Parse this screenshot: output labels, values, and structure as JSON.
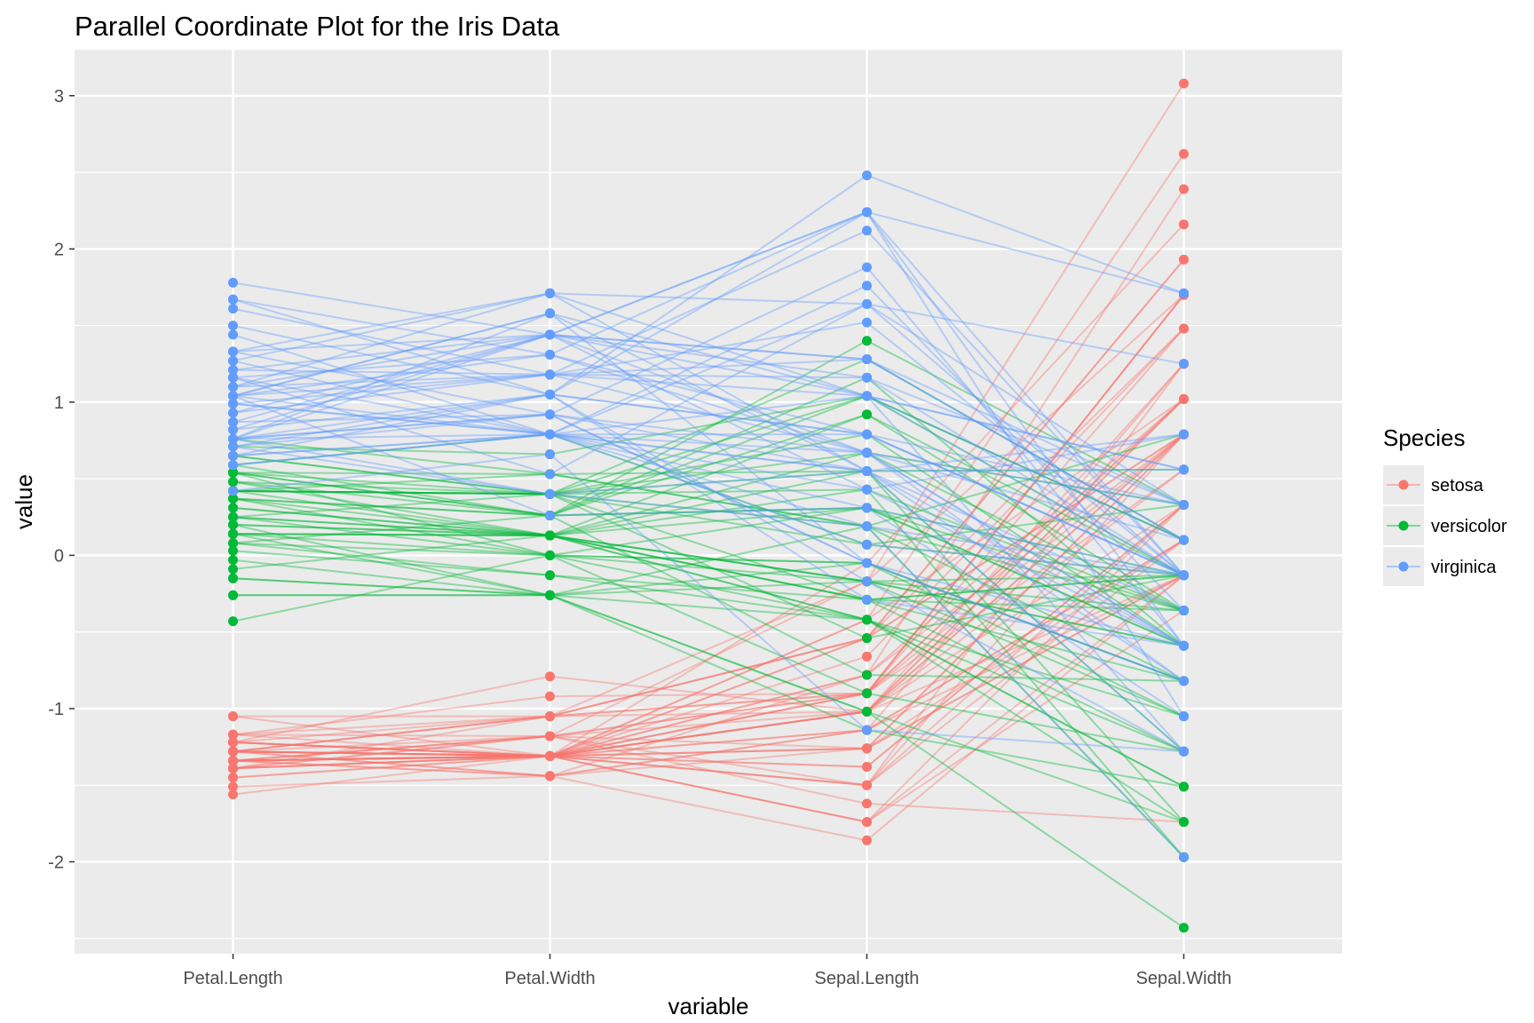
{
  "chart_data": {
    "type": "line",
    "subtype": "parallel-coordinates",
    "title": "Parallel Coordinate Plot for the Iris Data",
    "xlabel": "variable",
    "ylabel": "value",
    "ylim": [
      -2.6,
      3.3
    ],
    "yticks": [
      -2,
      -1,
      0,
      1,
      2,
      3
    ],
    "categories": [
      "Petal.Length",
      "Petal.Width",
      "Sepal.Length",
      "Sepal.Width"
    ],
    "grid": true,
    "legend": {
      "title": "Species",
      "placement": "right"
    },
    "series": [
      {
        "name": "setosa",
        "color": "#F8766D",
        "lines": [
          [
            -1.34,
            -1.31,
            -0.9,
            1.02
          ],
          [
            -1.34,
            -1.31,
            -1.14,
            -0.13
          ],
          [
            -1.39,
            -1.31,
            -1.38,
            0.33
          ],
          [
            -1.28,
            -1.31,
            -1.5,
            0.1
          ],
          [
            -1.34,
            -1.31,
            -1.02,
            1.25
          ],
          [
            -1.17,
            -1.05,
            -0.54,
            1.93
          ],
          [
            -1.34,
            -1.18,
            -1.5,
            0.79
          ],
          [
            -1.28,
            -1.31,
            -1.02,
            0.79
          ],
          [
            -1.34,
            -1.31,
            -1.74,
            -0.36
          ],
          [
            -1.28,
            -1.44,
            -1.14,
            0.1
          ],
          [
            -1.28,
            -1.31,
            -0.54,
            1.48
          ],
          [
            -1.22,
            -1.31,
            -1.26,
            0.79
          ],
          [
            -1.34,
            -1.44,
            -1.26,
            -0.13
          ],
          [
            -1.51,
            -1.44,
            -1.86,
            -0.13
          ],
          [
            -1.45,
            -1.31,
            -0.05,
            2.16
          ],
          [
            -1.28,
            -1.05,
            -0.17,
            3.08
          ],
          [
            -1.39,
            -1.05,
            -0.54,
            1.93
          ],
          [
            -1.34,
            -1.18,
            -0.9,
            1.02
          ],
          [
            -1.17,
            -1.18,
            -0.17,
            1.7
          ],
          [
            -1.28,
            -1.18,
            -0.9,
            1.7
          ],
          [
            -1.17,
            -1.31,
            -0.54,
            0.79
          ],
          [
            -1.28,
            -1.05,
            -0.9,
            1.48
          ],
          [
            -1.56,
            -1.31,
            -1.5,
            1.25
          ],
          [
            -1.17,
            -0.92,
            -0.9,
            0.56
          ],
          [
            -1.05,
            -1.31,
            -1.26,
            0.79
          ],
          [
            -1.22,
            -1.31,
            -1.02,
            -0.13
          ],
          [
            -1.22,
            -1.05,
            -1.02,
            0.79
          ],
          [
            -1.28,
            -1.31,
            -0.78,
            1.02
          ],
          [
            -1.34,
            -1.31,
            -0.78,
            0.79
          ],
          [
            -1.22,
            -1.31,
            -1.38,
            0.33
          ],
          [
            -1.22,
            -1.31,
            -1.26,
            0.1
          ],
          [
            -1.28,
            -1.05,
            -0.54,
            0.79
          ],
          [
            -1.28,
            -1.44,
            -0.78,
            2.39
          ],
          [
            -1.34,
            -1.31,
            -0.42,
            2.62
          ],
          [
            -1.28,
            -1.31,
            -1.14,
            0.1
          ],
          [
            -1.45,
            -1.31,
            -1.02,
            0.33
          ],
          [
            -1.39,
            -1.31,
            -0.42,
            1.02
          ],
          [
            -1.34,
            -1.44,
            -1.14,
            1.25
          ],
          [
            -1.39,
            -1.31,
            -1.74,
            -0.13
          ],
          [
            -1.28,
            -1.31,
            -0.9,
            0.79
          ],
          [
            -1.39,
            -1.18,
            -1.02,
            1.02
          ],
          [
            -1.39,
            -1.18,
            -1.62,
            -1.74
          ],
          [
            -1.39,
            -1.31,
            -1.74,
            0.33
          ],
          [
            -1.22,
            -0.79,
            -1.02,
            1.02
          ],
          [
            -1.05,
            -1.05,
            -0.9,
            1.7
          ],
          [
            -1.34,
            -1.18,
            -1.26,
            -0.13
          ],
          [
            -1.22,
            -1.31,
            -0.9,
            1.7
          ],
          [
            -1.34,
            -1.31,
            -1.5,
            0.33
          ],
          [
            -1.28,
            -1.31,
            -0.66,
            1.48
          ],
          [
            -1.34,
            -1.31,
            -1.02,
            0.56
          ]
        ]
      },
      {
        "name": "versicolor",
        "color": "#00BA38",
        "lines": [
          [
            0.54,
            0.26,
            1.4,
            0.33
          ],
          [
            0.42,
            0.4,
            0.67,
            0.33
          ],
          [
            0.65,
            0.4,
            1.28,
            0.1
          ],
          [
            0.14,
            0.13,
            -0.42,
            -1.74
          ],
          [
            0.48,
            0.4,
            0.79,
            -0.59
          ],
          [
            0.42,
            0.13,
            -0.17,
            -0.59
          ],
          [
            0.54,
            0.53,
            0.55,
            0.56
          ],
          [
            -0.26,
            -0.26,
            -1.14,
            -1.51
          ],
          [
            0.48,
            0.13,
            0.92,
            -0.36
          ],
          [
            0.08,
            0.26,
            -0.78,
            -0.82
          ],
          [
            -0.15,
            -0.26,
            -1.02,
            -2.43
          ],
          [
            0.25,
            0.4,
            0.07,
            -0.13
          ],
          [
            0.14,
            -0.26,
            0.19,
            -1.97
          ],
          [
            0.54,
            0.26,
            0.31,
            -0.36
          ],
          [
            -0.09,
            0.13,
            -0.29,
            -0.36
          ],
          [
            0.37,
            0.26,
            1.04,
            0.1
          ],
          [
            0.42,
            0.4,
            -0.29,
            -0.13
          ],
          [
            0.2,
            -0.26,
            -0.05,
            -0.82
          ],
          [
            0.42,
            0.4,
            0.43,
            -1.97
          ],
          [
            0.08,
            -0.13,
            -0.29,
            -1.28
          ],
          [
            0.59,
            0.79,
            0.07,
            0.33
          ],
          [
            0.14,
            0.13,
            0.31,
            -0.59
          ],
          [
            0.65,
            0.4,
            0.55,
            -1.28
          ],
          [
            0.54,
            0.0,
            0.31,
            -0.59
          ],
          [
            0.31,
            0.13,
            0.67,
            -0.36
          ],
          [
            0.37,
            0.26,
            0.92,
            -0.13
          ],
          [
            0.59,
            0.26,
            1.16,
            -0.59
          ],
          [
            0.71,
            0.66,
            1.04,
            -0.13
          ],
          [
            0.42,
            0.4,
            0.19,
            -0.36
          ],
          [
            -0.15,
            -0.26,
            -0.17,
            -1.05
          ],
          [
            0.03,
            -0.13,
            -0.42,
            -1.51
          ],
          [
            -0.03,
            -0.26,
            -0.42,
            -1.51
          ],
          [
            0.08,
            0.0,
            -0.05,
            -0.82
          ],
          [
            0.76,
            0.53,
            0.19,
            -0.82
          ],
          [
            0.42,
            0.4,
            -0.54,
            -0.13
          ],
          [
            0.42,
            0.53,
            0.19,
            0.79
          ],
          [
            0.54,
            0.4,
            1.04,
            0.1
          ],
          [
            0.37,
            0.13,
            0.55,
            -1.74
          ],
          [
            0.2,
            0.13,
            -0.29,
            -0.13
          ],
          [
            0.14,
            0.13,
            -0.42,
            -1.28
          ],
          [
            0.37,
            0.0,
            -0.42,
            -1.05
          ],
          [
            0.48,
            0.26,
            0.31,
            -0.13
          ],
          [
            0.14,
            0.0,
            -0.05,
            -1.05
          ],
          [
            -0.26,
            -0.26,
            -1.02,
            -1.74
          ],
          [
            0.25,
            0.13,
            -0.29,
            -0.82
          ],
          [
            0.25,
            0.0,
            -0.17,
            -0.13
          ],
          [
            0.25,
            0.13,
            -0.17,
            -0.36
          ],
          [
            0.31,
            0.13,
            0.43,
            -0.36
          ],
          [
            -0.43,
            0.0,
            -0.9,
            -1.28
          ],
          [
            0.2,
            0.13,
            -0.17,
            -0.59
          ]
        ]
      },
      {
        "name": "virginica",
        "color": "#619CFF",
        "lines": [
          [
            1.27,
            1.71,
            0.55,
            0.56
          ],
          [
            0.76,
            0.92,
            -0.05,
            -0.82
          ],
          [
            1.21,
            1.18,
            1.52,
            -0.13
          ],
          [
            1.04,
            0.79,
            0.55,
            -0.36
          ],
          [
            1.16,
            1.31,
            0.79,
            -0.13
          ],
          [
            1.61,
            1.18,
            2.12,
            -0.13
          ],
          [
            0.42,
            0.66,
            -1.14,
            -1.28
          ],
          [
            1.44,
            0.79,
            1.76,
            -0.36
          ],
          [
            1.16,
            0.79,
            1.04,
            -1.28
          ],
          [
            1.33,
            1.71,
            1.64,
            1.25
          ],
          [
            0.76,
            1.05,
            0.79,
            0.33
          ],
          [
            0.87,
            0.92,
            0.67,
            -0.82
          ],
          [
            0.99,
            1.18,
            1.16,
            -0.13
          ],
          [
            0.71,
            1.05,
            -0.17,
            -1.28
          ],
          [
            0.76,
            1.58,
            -0.05,
            -0.59
          ],
          [
            0.87,
            1.44,
            0.67,
            0.33
          ],
          [
            0.99,
            0.79,
            0.79,
            -0.13
          ],
          [
            1.67,
            1.31,
            2.24,
            1.71
          ],
          [
            1.78,
            1.44,
            2.24,
            -1.05
          ],
          [
            0.71,
            0.4,
            0.19,
            -1.97
          ],
          [
            1.1,
            1.44,
            1.28,
            0.33
          ],
          [
            0.65,
            1.05,
            -0.29,
            -0.59
          ],
          [
            1.67,
            1.05,
            2.24,
            -0.59
          ],
          [
            0.65,
            0.79,
            0.55,
            -0.82
          ],
          [
            1.1,
            1.18,
            1.04,
            0.56
          ],
          [
            1.27,
            0.79,
            1.64,
            0.33
          ],
          [
            0.59,
            0.79,
            0.43,
            -0.59
          ],
          [
            0.65,
            0.79,
            0.31,
            -0.13
          ],
          [
            1.04,
            1.18,
            0.67,
            -0.59
          ],
          [
            1.16,
            0.53,
            1.64,
            -0.13
          ],
          [
            1.33,
            0.92,
            1.88,
            -0.59
          ],
          [
            1.5,
            1.05,
            2.48,
            1.71
          ],
          [
            1.04,
            1.31,
            0.67,
            -0.59
          ],
          [
            0.76,
            0.4,
            0.55,
            -0.59
          ],
          [
            1.04,
            0.26,
            0.31,
            -1.05
          ],
          [
            1.33,
            1.44,
            2.24,
            -0.13
          ],
          [
            1.04,
            1.58,
            0.55,
            0.79
          ],
          [
            0.99,
            0.79,
            0.67,
            0.1
          ],
          [
            0.59,
            0.79,
            0.19,
            -0.13
          ],
          [
            0.93,
            1.18,
            1.28,
            0.1
          ],
          [
            1.04,
            1.58,
            1.04,
            0.1
          ],
          [
            0.76,
            1.44,
            1.28,
            0.1
          ],
          [
            0.76,
            0.92,
            -0.05,
            -0.82
          ],
          [
            1.21,
            1.44,
            1.16,
            0.33
          ],
          [
            1.1,
            1.71,
            1.04,
            0.56
          ],
          [
            0.82,
            1.44,
            1.04,
            -0.13
          ],
          [
            0.71,
            0.92,
            0.55,
            -1.28
          ],
          [
            0.82,
            1.05,
            0.79,
            -0.13
          ],
          [
            0.93,
            1.44,
            0.43,
            0.79
          ],
          [
            0.76,
            0.79,
            0.07,
            -0.13
          ]
        ]
      }
    ]
  }
}
